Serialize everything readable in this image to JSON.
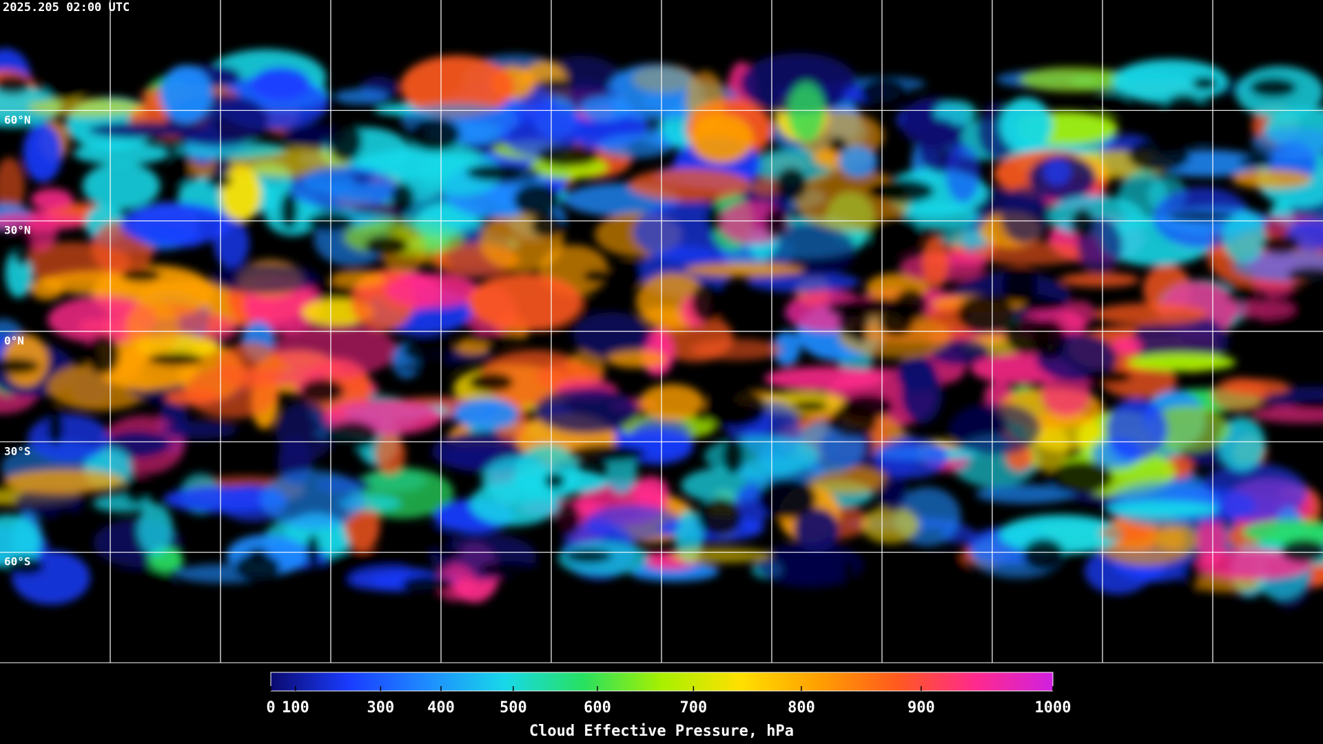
{
  "header": {
    "timestamp": "2025.205 02:00 UTC"
  },
  "map": {
    "latitudes": [
      {
        "value": 60,
        "label": "60°N"
      },
      {
        "value": 30,
        "label": "30°N"
      },
      {
        "value": 0,
        "label": "0°N"
      },
      {
        "value": -30,
        "label": "30°S"
      },
      {
        "value": -60,
        "label": "60°S"
      }
    ]
  },
  "colorbar": {
    "title": "Cloud Effective Pressure, hPa",
    "range": [
      0,
      1000
    ],
    "ticks": [
      0,
      100,
      300,
      400,
      500,
      600,
      700,
      800,
      900,
      1000
    ],
    "colors": [
      "#0a0a6e",
      "#1a3cff",
      "#1e8cff",
      "#18d8e8",
      "#28e060",
      "#a8f000",
      "#ffe000",
      "#ffa000",
      "#ff5a1e",
      "#ff2a8c",
      "#d020e0"
    ]
  }
}
